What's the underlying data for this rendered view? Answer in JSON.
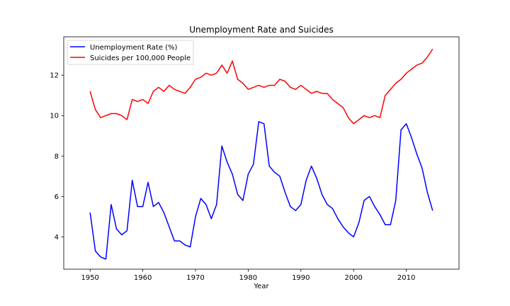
{
  "chart_data": {
    "type": "line",
    "title": "Unemployment Rate and Suicides",
    "xlabel": "Year",
    "ylabel": "",
    "xlim": [
      1945,
      2020
    ],
    "ylim": [
      2.4,
      13.9
    ],
    "xticks": [
      1950,
      1960,
      1970,
      1980,
      1990,
      2000,
      2010
    ],
    "yticks": [
      4,
      6,
      8,
      10,
      12
    ],
    "legend_position": "upper-left",
    "grid": false,
    "x": [
      1950,
      1951,
      1952,
      1953,
      1954,
      1955,
      1956,
      1957,
      1958,
      1959,
      1960,
      1961,
      1962,
      1963,
      1964,
      1965,
      1966,
      1967,
      1968,
      1969,
      1970,
      1971,
      1972,
      1973,
      1974,
      1975,
      1976,
      1977,
      1978,
      1979,
      1980,
      1981,
      1982,
      1983,
      1984,
      1985,
      1986,
      1987,
      1988,
      1989,
      1990,
      1991,
      1992,
      1993,
      1994,
      1995,
      1996,
      1997,
      1998,
      1999,
      2000,
      2001,
      2002,
      2003,
      2004,
      2005,
      2006,
      2007,
      2008,
      2009,
      2010,
      2011,
      2012,
      2013,
      2014,
      2015
    ],
    "series": [
      {
        "name": "Unemployment Rate (%)",
        "color": "#0000ff",
        "values": [
          5.2,
          3.3,
          3.0,
          2.9,
          5.6,
          4.4,
          4.1,
          4.3,
          6.8,
          5.5,
          5.5,
          6.7,
          5.5,
          5.7,
          5.2,
          4.5,
          3.8,
          3.8,
          3.6,
          3.5,
          5.0,
          5.9,
          5.6,
          4.9,
          5.6,
          8.5,
          7.7,
          7.1,
          6.1,
          5.8,
          7.1,
          7.6,
          9.7,
          9.6,
          7.5,
          7.2,
          7.0,
          6.2,
          5.5,
          5.3,
          5.6,
          6.8,
          7.5,
          6.9,
          6.1,
          5.6,
          5.4,
          4.9,
          4.5,
          4.2,
          4.0,
          4.7,
          5.8,
          6.0,
          5.5,
          5.1,
          4.6,
          4.6,
          5.8,
          9.3,
          9.6,
          8.9,
          8.1,
          7.4,
          6.2,
          5.3
        ]
      },
      {
        "name": "Suicides per 100,000 People",
        "color": "#ff0000",
        "values": [
          11.2,
          10.3,
          9.9,
          10.0,
          10.1,
          10.1,
          10.0,
          9.8,
          10.8,
          10.7,
          10.8,
          10.6,
          11.2,
          11.4,
          11.2,
          11.5,
          11.3,
          11.2,
          11.1,
          11.4,
          11.8,
          11.9,
          12.1,
          12.0,
          12.1,
          12.5,
          12.1,
          12.7,
          11.8,
          11.6,
          11.3,
          11.4,
          11.5,
          11.4,
          11.5,
          11.5,
          11.8,
          11.7,
          11.4,
          11.3,
          11.5,
          11.3,
          11.1,
          11.2,
          11.1,
          11.1,
          10.8,
          10.6,
          10.4,
          9.9,
          9.6,
          9.8,
          10.0,
          9.9,
          10.0,
          9.9,
          11.0,
          11.3,
          11.6,
          11.8,
          12.1,
          12.3,
          12.5,
          12.6,
          12.9,
          13.3
        ]
      }
    ]
  }
}
